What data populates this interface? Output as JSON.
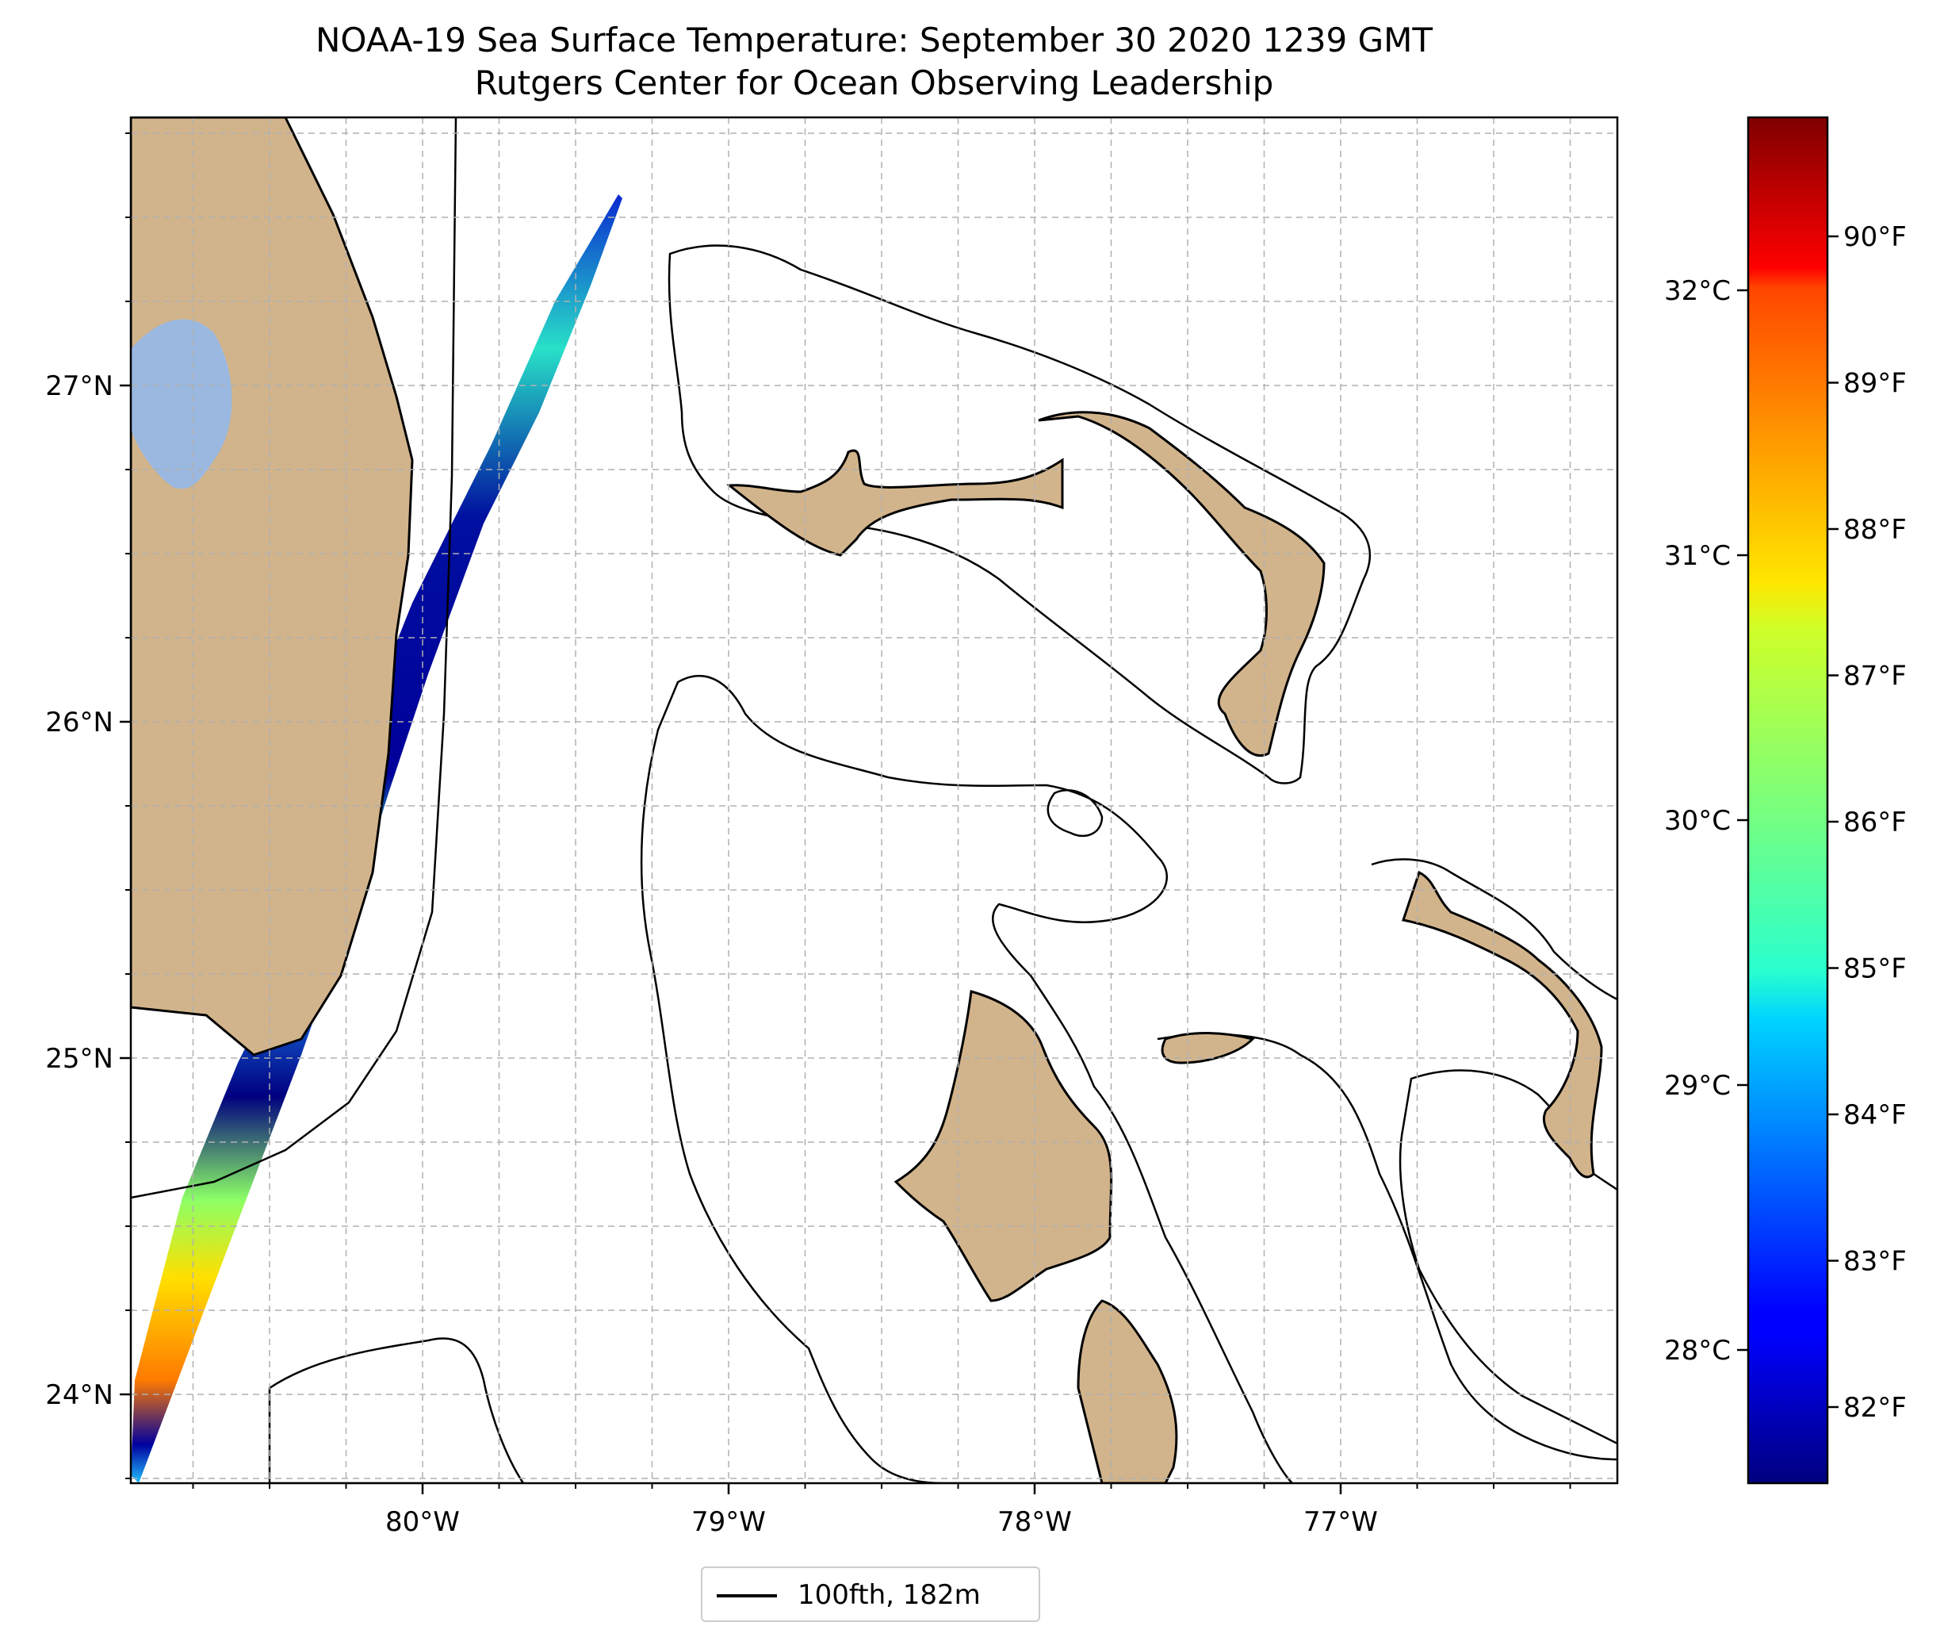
{
  "title": "NOAA-19 Sea Surface Temperature: September 30 2020 1239 GMT",
  "subtitle": "Rutgers Center for Ocean Observing Leadership",
  "map": {
    "lon_ticks": [
      {
        "value": -80,
        "label": "80°W"
      },
      {
        "value": -79,
        "label": "79°W"
      },
      {
        "value": -78,
        "label": "78°W"
      },
      {
        "value": -77,
        "label": "77°W"
      }
    ],
    "lat_ticks": [
      {
        "value": 27,
        "label": "27°N"
      },
      {
        "value": 26,
        "label": "26°N"
      },
      {
        "value": 25,
        "label": "25°N"
      },
      {
        "value": 24,
        "label": "24°N"
      }
    ],
    "land_color": "#d2b48c",
    "lake_color": "#9ab8e0",
    "grid": true
  },
  "colorbar": {
    "colormap": "jet",
    "celsius_ticks": [
      {
        "value": 28,
        "label": "28°C"
      },
      {
        "value": 29,
        "label": "29°C"
      },
      {
        "value": 30,
        "label": "30°C"
      },
      {
        "value": 31,
        "label": "31°C"
      },
      {
        "value": 32,
        "label": "32°C"
      }
    ],
    "fahrenheit_ticks": [
      {
        "value": 82,
        "label": "82°F"
      },
      {
        "value": 83,
        "label": "83°F"
      },
      {
        "value": 84,
        "label": "84°F"
      },
      {
        "value": 85,
        "label": "85°F"
      },
      {
        "value": 86,
        "label": "86°F"
      },
      {
        "value": 87,
        "label": "87°F"
      },
      {
        "value": 88,
        "label": "88°F"
      },
      {
        "value": 89,
        "label": "89°F"
      },
      {
        "value": 90,
        "label": "90°F"
      }
    ]
  },
  "legend": {
    "label": "100fth, 182m"
  }
}
